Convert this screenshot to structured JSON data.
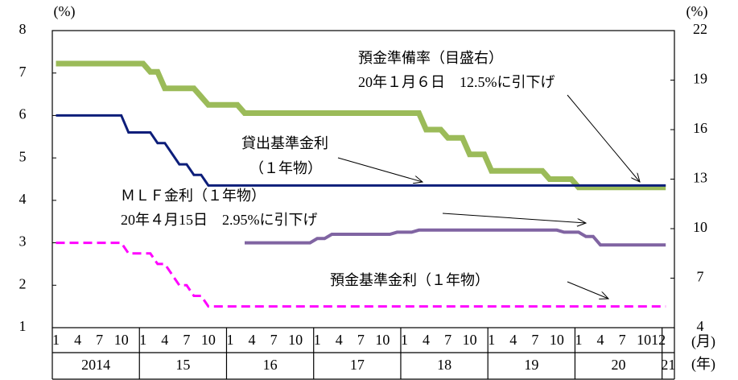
{
  "chart_data": {
    "type": "line",
    "ylabel": "(%)",
    "y2label": "(%)",
    "xlabel_month": "(月)",
    "xlabel_year": "(年)",
    "x": [
      "2014-01",
      "2014-02",
      "2014-03",
      "2014-04",
      "2014-05",
      "2014-06",
      "2014-07",
      "2014-08",
      "2014-09",
      "2014-10",
      "2014-11",
      "2014-12",
      "2015-01",
      "2015-02",
      "2015-03",
      "2015-04",
      "2015-05",
      "2015-06",
      "2015-07",
      "2015-08",
      "2015-09",
      "2015-10",
      "2015-11",
      "2015-12",
      "2016-01",
      "2016-02",
      "2016-03",
      "2016-04",
      "2016-05",
      "2016-06",
      "2016-07",
      "2016-08",
      "2016-09",
      "2016-10",
      "2016-11",
      "2016-12",
      "2017-01",
      "2017-02",
      "2017-03",
      "2017-04",
      "2017-05",
      "2017-06",
      "2017-07",
      "2017-08",
      "2017-09",
      "2017-10",
      "2017-11",
      "2017-12",
      "2018-01",
      "2018-02",
      "2018-03",
      "2018-04",
      "2018-05",
      "2018-06",
      "2018-07",
      "2018-08",
      "2018-09",
      "2018-10",
      "2018-11",
      "2018-12",
      "2019-01",
      "2019-02",
      "2019-03",
      "2019-04",
      "2019-05",
      "2019-06",
      "2019-07",
      "2019-08",
      "2019-09",
      "2019-10",
      "2019-11",
      "2019-12",
      "2020-01",
      "2020-02",
      "2020-03",
      "2020-04",
      "2020-05",
      "2020-06",
      "2020-07",
      "2020-08",
      "2020-09",
      "2020-10",
      "2020-11",
      "2020-12",
      "2021-01"
    ],
    "series": [
      {
        "name": "預金準備率（目盛右）",
        "note": "20年１月６日　12.5%に引下げ",
        "color": "#9bbb59",
        "axis": "y2",
        "width": 7,
        "values": [
          20,
          20,
          20,
          20,
          20,
          20,
          20,
          20,
          20,
          20,
          20,
          20,
          20,
          19.5,
          19.5,
          18.5,
          18.5,
          18.5,
          18.5,
          18.5,
          18,
          17.5,
          17.5,
          17.5,
          17.5,
          17.5,
          17,
          17,
          17,
          17,
          17,
          17,
          17,
          17,
          17,
          17,
          17,
          17,
          17,
          17,
          17,
          17,
          17,
          17,
          17,
          17,
          17,
          17,
          17,
          17,
          17,
          16,
          16,
          16,
          15.5,
          15.5,
          15.5,
          14.5,
          14.5,
          14.5,
          13.5,
          13.5,
          13.5,
          13.5,
          13.5,
          13.5,
          13.5,
          13.5,
          13,
          13,
          13,
          13,
          12.5,
          12.5,
          12.5,
          12.5,
          12.5,
          12.5,
          12.5,
          12.5,
          12.5,
          12.5,
          12.5,
          12.5,
          12.5
        ]
      },
      {
        "name": "貸出基準金利",
        "note": "（１年物）",
        "color": "#0d1e7a",
        "width": 3,
        "values": [
          6,
          6,
          6,
          6,
          6,
          6,
          6,
          6,
          6,
          6,
          5.6,
          5.6,
          5.6,
          5.6,
          5.35,
          5.35,
          5.1,
          4.85,
          4.85,
          4.6,
          4.6,
          4.35,
          4.35,
          4.35,
          4.35,
          4.35,
          4.35,
          4.35,
          4.35,
          4.35,
          4.35,
          4.35,
          4.35,
          4.35,
          4.35,
          4.35,
          4.35,
          4.35,
          4.35,
          4.35,
          4.35,
          4.35,
          4.35,
          4.35,
          4.35,
          4.35,
          4.35,
          4.35,
          4.35,
          4.35,
          4.35,
          4.35,
          4.35,
          4.35,
          4.35,
          4.35,
          4.35,
          4.35,
          4.35,
          4.35,
          4.35,
          4.35,
          4.35,
          4.35,
          4.35,
          4.35,
          4.35,
          4.35,
          4.35,
          4.35,
          4.35,
          4.35,
          4.35,
          4.35,
          4.35,
          4.35,
          4.35,
          4.35,
          4.35,
          4.35,
          4.35,
          4.35,
          4.35,
          4.35,
          4.35
        ]
      },
      {
        "name": "ＭＬＦ金利（１年物）",
        "note": "20年４月15日　2.95%に引下げ",
        "color": "#8064a2",
        "width": 4,
        "values": [
          null,
          null,
          null,
          null,
          null,
          null,
          null,
          null,
          null,
          null,
          null,
          null,
          null,
          null,
          null,
          null,
          null,
          null,
          null,
          null,
          null,
          null,
          null,
          null,
          null,
          null,
          3,
          3,
          3,
          3,
          3,
          3,
          3,
          3,
          3,
          3,
          3.1,
          3.1,
          3.2,
          3.2,
          3.2,
          3.2,
          3.2,
          3.2,
          3.2,
          3.2,
          3.2,
          3.25,
          3.25,
          3.25,
          3.3,
          3.3,
          3.3,
          3.3,
          3.3,
          3.3,
          3.3,
          3.3,
          3.3,
          3.3,
          3.3,
          3.3,
          3.3,
          3.3,
          3.3,
          3.3,
          3.3,
          3.3,
          3.3,
          3.3,
          3.25,
          3.25,
          3.25,
          3.15,
          3.15,
          2.95,
          2.95,
          2.95,
          2.95,
          2.95,
          2.95,
          2.95,
          2.95,
          2.95,
          2.95
        ]
      },
      {
        "name": "預金基準金利（１年物）",
        "color": "#ff00ff",
        "width": 3,
        "dashed": true,
        "values": [
          3,
          3,
          3,
          3,
          3,
          3,
          3,
          3,
          3,
          3,
          2.75,
          2.75,
          2.75,
          2.75,
          2.5,
          2.5,
          2.25,
          2,
          2,
          1.75,
          1.75,
          1.5,
          1.5,
          1.5,
          1.5,
          1.5,
          1.5,
          1.5,
          1.5,
          1.5,
          1.5,
          1.5,
          1.5,
          1.5,
          1.5,
          1.5,
          1.5,
          1.5,
          1.5,
          1.5,
          1.5,
          1.5,
          1.5,
          1.5,
          1.5,
          1.5,
          1.5,
          1.5,
          1.5,
          1.5,
          1.5,
          1.5,
          1.5,
          1.5,
          1.5,
          1.5,
          1.5,
          1.5,
          1.5,
          1.5,
          1.5,
          1.5,
          1.5,
          1.5,
          1.5,
          1.5,
          1.5,
          1.5,
          1.5,
          1.5,
          1.5,
          1.5,
          1.5,
          1.5,
          1.5,
          1.5,
          1.5,
          1.5,
          1.5,
          1.5,
          1.5,
          1.5,
          1.5,
          1.5,
          1.5
        ]
      }
    ],
    "ylim": [
      1,
      8
    ],
    "yticks": [
      1,
      2,
      3,
      4,
      5,
      6,
      7,
      8
    ],
    "y2lim": [
      4,
      22
    ],
    "y2ticks": [
      4,
      7,
      10,
      13,
      16,
      19,
      22
    ],
    "month_labels": [
      {
        "x": "2014-01",
        "label": "1"
      },
      {
        "x": "2014-04",
        "label": "4"
      },
      {
        "x": "2014-07",
        "label": "7"
      },
      {
        "x": "2014-10",
        "label": "10"
      },
      {
        "x": "2015-01",
        "label": "1"
      },
      {
        "x": "2015-04",
        "label": "4"
      },
      {
        "x": "2015-07",
        "label": "7"
      },
      {
        "x": "2015-10",
        "label": "10"
      },
      {
        "x": "2016-01",
        "label": "1"
      },
      {
        "x": "2016-04",
        "label": "4"
      },
      {
        "x": "2016-07",
        "label": "7"
      },
      {
        "x": "2016-10",
        "label": "10"
      },
      {
        "x": "2017-01",
        "label": "1"
      },
      {
        "x": "2017-04",
        "label": "4"
      },
      {
        "x": "2017-07",
        "label": "7"
      },
      {
        "x": "2017-10",
        "label": "10"
      },
      {
        "x": "2018-01",
        "label": "1"
      },
      {
        "x": "2018-04",
        "label": "4"
      },
      {
        "x": "2018-07",
        "label": "7"
      },
      {
        "x": "2018-10",
        "label": "10"
      },
      {
        "x": "2019-01",
        "label": "1"
      },
      {
        "x": "2019-04",
        "label": "4"
      },
      {
        "x": "2019-07",
        "label": "7"
      },
      {
        "x": "2019-10",
        "label": "10"
      },
      {
        "x": "2020-01",
        "label": "1"
      },
      {
        "x": "2020-04",
        "label": "4"
      },
      {
        "x": "2020-07",
        "label": "7"
      },
      {
        "x": "2020-10",
        "label": "10"
      },
      {
        "x": "2020-12",
        "label": "12"
      }
    ],
    "year_labels": [
      {
        "x": "2014-01",
        "label": "2014"
      },
      {
        "x": "2015-01",
        "label": "15"
      },
      {
        "x": "2016-01",
        "label": "16"
      },
      {
        "x": "2017-01",
        "label": "17"
      },
      {
        "x": "2018-01",
        "label": "18"
      },
      {
        "x": "2019-01",
        "label": "19"
      },
      {
        "x": "2020-01",
        "label": "20"
      },
      {
        "x": "2021-01",
        "label": "21"
      }
    ]
  }
}
